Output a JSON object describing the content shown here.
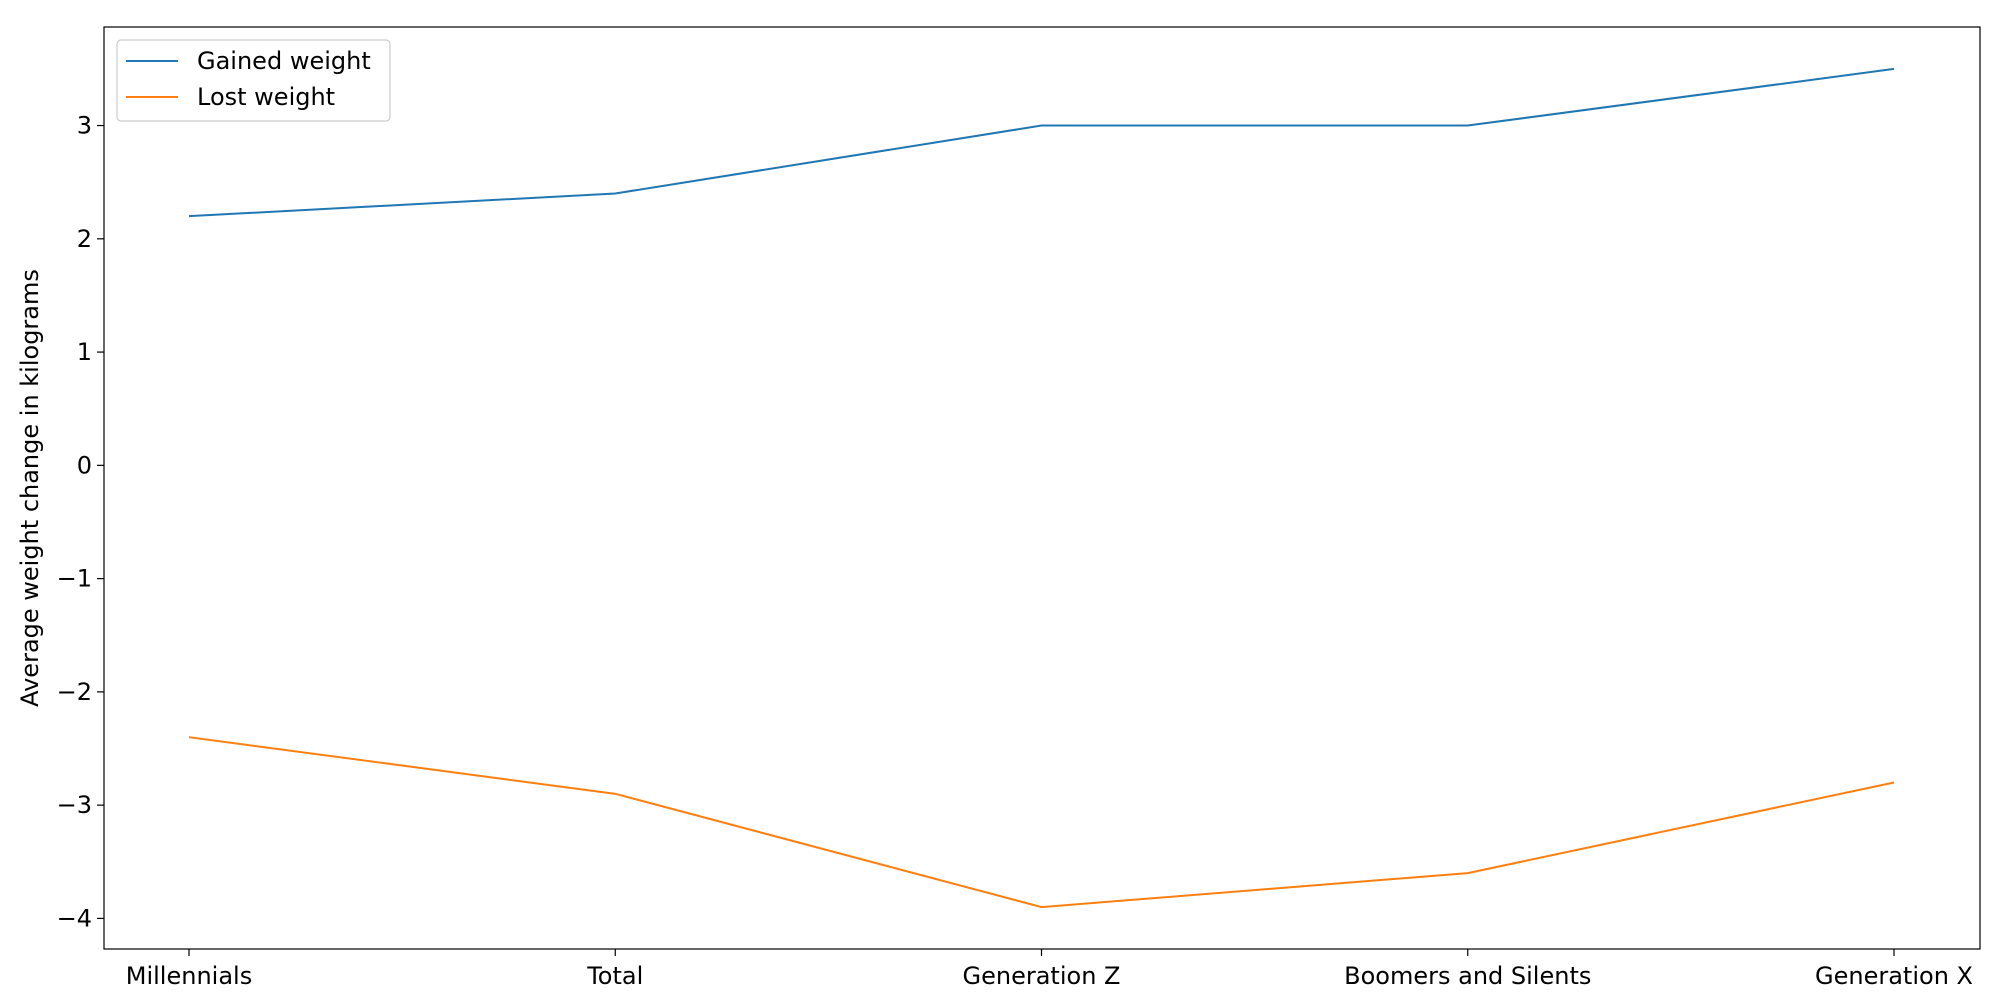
{
  "chart_data": {
    "type": "line",
    "categories": [
      "Millennials",
      "Total",
      "Generation Z",
      "Boomers and Silents",
      "Generation X"
    ],
    "series": [
      {
        "name": "Gained weight",
        "color": "#1f77b4",
        "values": [
          2.2,
          2.4,
          3.0,
          3.0,
          3.5
        ]
      },
      {
        "name": "Lost weight",
        "color": "#ff7f0e",
        "values": [
          -2.4,
          -2.9,
          -3.9,
          -3.6,
          -2.8
        ]
      }
    ],
    "ylabel": "Average weight change in kilograms",
    "xlabel": "",
    "ylim": [
      -4.27,
      3.87
    ],
    "yticks": [
      -4,
      -3,
      -2,
      -1,
      0,
      1,
      2,
      3
    ],
    "ytick_labels": [
      "−4",
      "−3",
      "−2",
      "−1",
      "0",
      "1",
      "2",
      "3"
    ],
    "grid": false,
    "legend_position": "top-left"
  }
}
